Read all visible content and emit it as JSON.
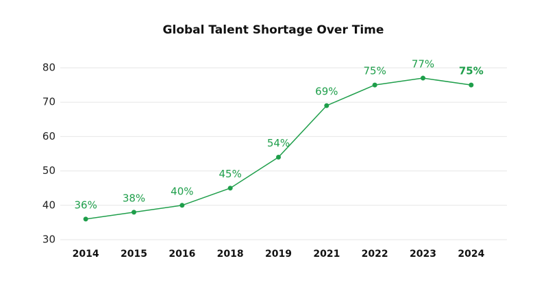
{
  "chart_data": {
    "type": "line",
    "title": "Global Talent Shortage Over Time",
    "categories": [
      "2014",
      "2015",
      "2016",
      "2018",
      "2019",
      "2021",
      "2022",
      "2023",
      "2024"
    ],
    "values": [
      36,
      38,
      40,
      45,
      54,
      69,
      75,
      77,
      75
    ],
    "value_labels": [
      "36%",
      "38%",
      "40%",
      "45%",
      "54%",
      "69%",
      "75%",
      "77%",
      "75%"
    ],
    "color": "#1e9e4a",
    "ylim": [
      30,
      80
    ],
    "yticks": [
      30,
      40,
      50,
      60,
      70,
      80
    ],
    "grid": true
  }
}
